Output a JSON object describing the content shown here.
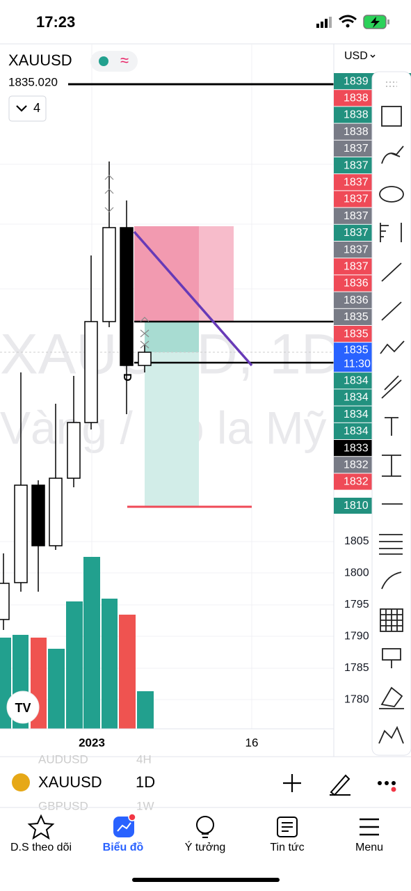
{
  "status": {
    "time": "17:23"
  },
  "header": {
    "symbol": "XAUUSD",
    "approx": "≈",
    "line_price": "1835.020",
    "layers": "4",
    "currency": "USD"
  },
  "price_tags": [
    {
      "label": "1839",
      "color": "#22917f"
    },
    {
      "label": "1838",
      "color": "#ef4a57"
    },
    {
      "label": "1838",
      "color": "#22917f"
    },
    {
      "label": "1838",
      "color": "#787b86"
    },
    {
      "label": "1837",
      "color": "#787b86"
    },
    {
      "label": "1837",
      "color": "#22917f"
    },
    {
      "label": "1837",
      "color": "#ef4a57"
    },
    {
      "label": "1837",
      "color": "#ef4a57"
    },
    {
      "label": "1837",
      "color": "#787b86"
    },
    {
      "label": "1837",
      "color": "#22917f"
    },
    {
      "label": "1837",
      "color": "#787b86"
    },
    {
      "label": "1837",
      "color": "#ef4a57"
    },
    {
      "label": "1836",
      "color": "#ef4a57"
    },
    {
      "label": "1836",
      "color": "#787b86"
    },
    {
      "label": "1835",
      "color": "#787b86"
    },
    {
      "label": "1835",
      "color": "#ef4a57"
    },
    {
      "label": "1835",
      "sub": "11:30",
      "color": "#2962ff"
    },
    {
      "label": "1834",
      "color": "#22917f"
    },
    {
      "label": "1834",
      "color": "#22917f"
    },
    {
      "label": "1834",
      "color": "#22917f"
    },
    {
      "label": "1834",
      "color": "#22917f"
    },
    {
      "label": "1833",
      "color": "#000000"
    },
    {
      "label": "1832",
      "color": "#787b86"
    },
    {
      "label": "1832",
      "color": "#ef4a57"
    }
  ],
  "last_tag": {
    "label": "1810",
    "color": "#22917f"
  },
  "axis_prices": [
    "1805",
    "1800",
    "1795",
    "1790",
    "1785",
    "1780"
  ],
  "time_axis": [
    "2023",
    "16"
  ],
  "watermark": {
    "symbol": "XAUUSD, 1D",
    "name": "Vàng / Đô la Mỹ"
  },
  "bottom_bar": {
    "symbol": "XAUUSD",
    "interval": "1D",
    "ghost": [
      "AUDUSD",
      "4H",
      "GBPUSD",
      "1W"
    ]
  },
  "nav": [
    "D.S theo dõi",
    "Biểu đồ",
    "Ý tưởng",
    "Tin tức",
    "Menu"
  ]
}
